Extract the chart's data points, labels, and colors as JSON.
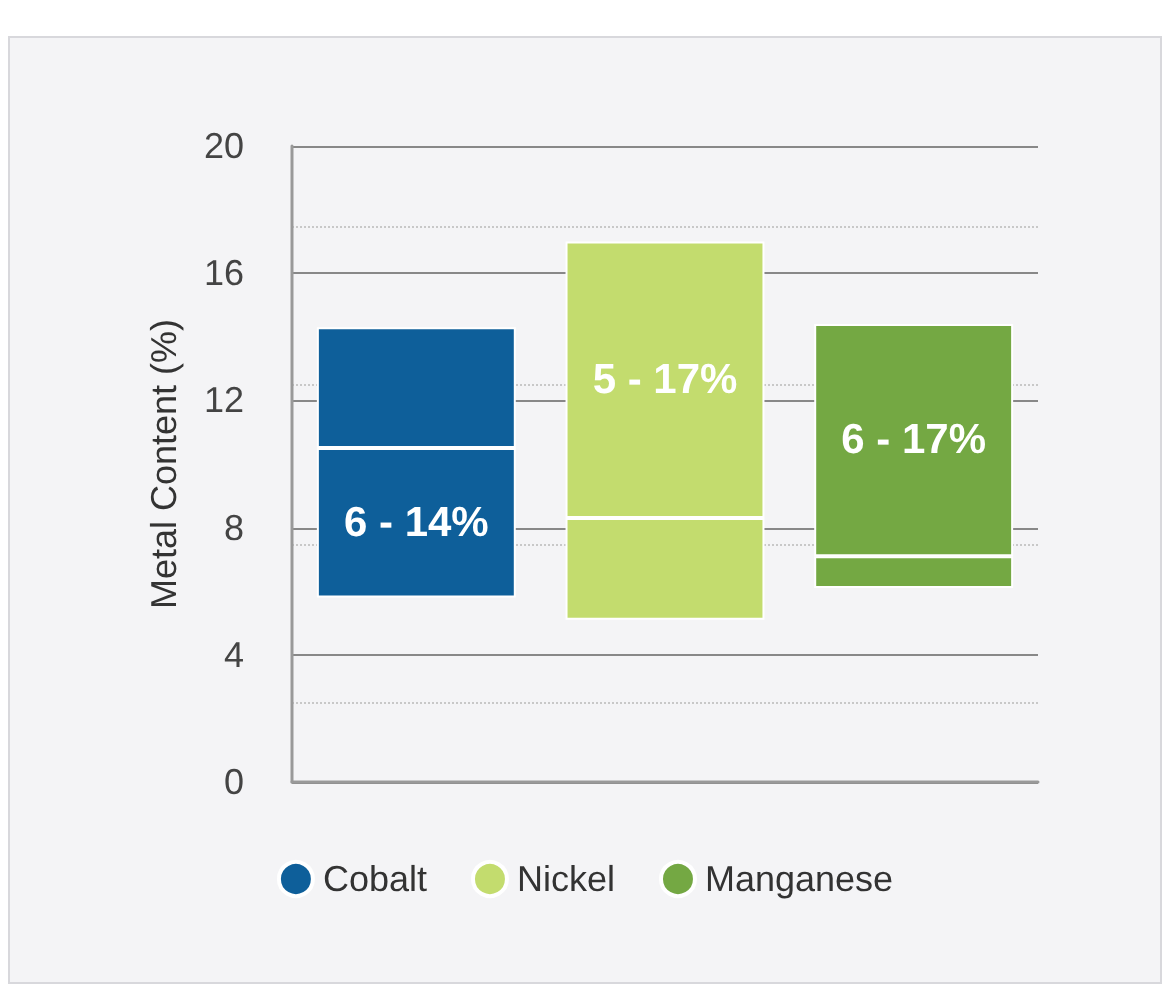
{
  "chart_data": {
    "type": "bar",
    "ylabel": "Metal Content (%)",
    "categories": [
      null,
      null,
      null
    ],
    "series": [
      {
        "name": "Cobalt",
        "color": "#0e5f9a",
        "base": [
          5.8,
          null,
          null
        ],
        "values": [
          4.7,
          null,
          null
        ]
      },
      {
        "color": "#0e5f9a",
        "base": [
          10.5,
          null,
          null
        ],
        "values": [
          3.8,
          null,
          null
        ]
      },
      {
        "name": "Nickel",
        "color": "#c3dc6e",
        "base": [
          null,
          5.1,
          null
        ],
        "values": [
          null,
          3.2,
          null
        ]
      },
      {
        "color": "#c3dc6e",
        "base": [
          null,
          8.3,
          null
        ],
        "values": [
          null,
          8.7,
          null
        ]
      },
      {
        "name": "Manganese",
        "color": "#74a843",
        "base": [
          null,
          null,
          6.1
        ],
        "values": [
          null,
          null,
          1.0
        ]
      },
      {
        "color": "#74a843",
        "base": [
          null,
          null,
          7.1
        ],
        "values": [
          null,
          null,
          7.3
        ]
      }
    ],
    "annotations": [
      "6 - 14%",
      "5 - 17%",
      "6 - 17%"
    ],
    "ylim": [
      0,
      20
    ],
    "yticks": [
      0,
      4,
      8,
      12,
      16,
      20
    ],
    "grid": "y",
    "legend": "bottom",
    "tick_labels": "y"
  }
}
